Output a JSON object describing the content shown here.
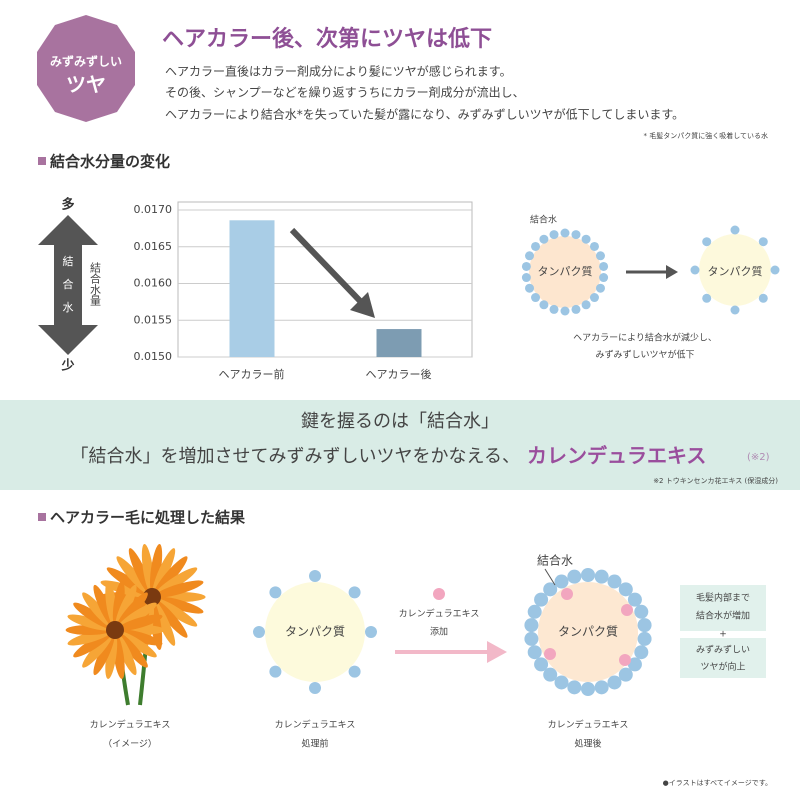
{
  "badge": {
    "line1": "みずみずしい",
    "line2": "ツヤ"
  },
  "header": {
    "title": "ヘアカラー後、次第にツヤは低下",
    "lines": [
      "ヘアカラー直後はカラー剤成分により髪にツヤが感じられます。",
      "その後、シャンプーなどを繰り返すうちにカラー剤成分が流出し、",
      "ヘアカラーにより結合水*を失っていた髪が露になり、みずみずしいツヤが低下してしまいます。"
    ],
    "footnote": "* 毛髪タンパク質に強く吸着している水"
  },
  "section1": {
    "heading": "結合水分量の変化",
    "arrow_top": "多",
    "arrow_chars": [
      "結",
      "合",
      "水"
    ],
    "axis_label": "結合水量",
    "arrow_bottom": "少"
  },
  "chart_data": {
    "type": "bar",
    "categories": [
      "ヘアカラー前",
      "ヘアカラー後"
    ],
    "values": [
      0.01686,
      0.01538
    ],
    "colors": [
      "#a9cde6",
      "#7d9cb2"
    ],
    "ylim": [
      0.015,
      0.017
    ],
    "yticks": [
      {
        "value": 0.015,
        "label": "0.0150"
      },
      {
        "value": 0.0155,
        "label": "0.0155"
      },
      {
        "value": 0.016,
        "label": "0.0160"
      },
      {
        "value": 0.0165,
        "label": "0.0165"
      },
      {
        "value": 0.017,
        "label": "0.0170"
      }
    ],
    "grid": true
  },
  "diagram1": {
    "water_label": "結合水",
    "protein_before": "タンパク質",
    "protein_after": "タンパク質",
    "caption": [
      "ヘアカラーにより結合水が減少し、",
      "みずみずしいツヤが低下"
    ]
  },
  "banner": {
    "line1": "鍵を握るのは「結合水」",
    "line2": "「結合水」を増加させてみずみずしいツヤをかなえる、",
    "highlight": "カレンデュラエキス",
    "note_ref": "(※2)",
    "footnote": "※2 トウキンセンカ花エキス (保湿成分)"
  },
  "section2": {
    "heading": "ヘアカラー毛に処理した結果",
    "flower_caption": [
      "カレンデュラエキス",
      "（イメージ）"
    ],
    "before_protein": "タンパク質",
    "before_caption": [
      "カレンデュラエキス",
      "処理前"
    ],
    "arrow_label": [
      "カレンデュラエキス",
      "添加"
    ],
    "water_label": "結合水",
    "after_protein": "タンパク質",
    "after_caption": [
      "カレンデュラエキス",
      "処理後"
    ],
    "result1": [
      "毛髪内部まで",
      "結合水が増加"
    ],
    "plus": "+",
    "result2": [
      "みずみずしい",
      "ツヤが向上"
    ],
    "disclaimer": "●イラストはすべてイメージです。"
  }
}
